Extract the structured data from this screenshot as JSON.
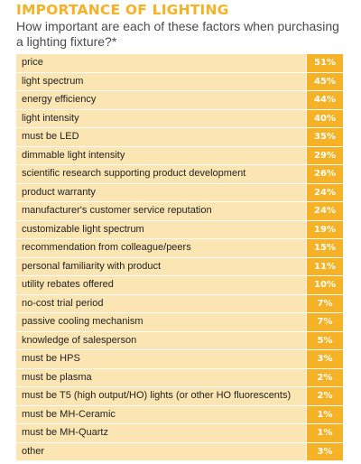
{
  "chart_data": {
    "type": "table",
    "title": "IMPORTANCE OF LIGHTING",
    "subtitle": "How important are each of these factors when purchasing a lighting fixture?*",
    "colors": {
      "title": "#f5b227",
      "label_bg": "#fbe6b3",
      "value_bg": "#f5b227",
      "value_text": "#ffffff"
    },
    "rows": [
      {
        "label": "price",
        "value": "51%"
      },
      {
        "label": "light spectrum",
        "value": "45%"
      },
      {
        "label": "energy efficiency",
        "value": "44%"
      },
      {
        "label": "light intensity",
        "value": "40%"
      },
      {
        "label": "must be LED",
        "value": "35%"
      },
      {
        "label": "dimmable light intensity",
        "value": "29%"
      },
      {
        "label": "scientific research supporting product development",
        "value": "26%"
      },
      {
        "label": "product warranty",
        "value": "24%"
      },
      {
        "label": "manufacturer's customer service reputation",
        "value": "24%"
      },
      {
        "label": "customizable light spectrum",
        "value": "19%"
      },
      {
        "label": "recommendation from colleague/peers",
        "value": "15%"
      },
      {
        "label": "personal familiarity with product",
        "value": "11%"
      },
      {
        "label": "utility rebates offered",
        "value": "10%"
      },
      {
        "label": "no-cost trial period",
        "value": "7%"
      },
      {
        "label": "passive cooling mechanism",
        "value": "7%"
      },
      {
        "label": "knowledge of salesperson",
        "value": "5%"
      },
      {
        "label": "must be HPS",
        "value": "3%"
      },
      {
        "label": "must be plasma",
        "value": "2%"
      },
      {
        "label": "must be T5 (high output/HO) lights (or other HO fluorescents)",
        "value": "2%"
      },
      {
        "label": "must be MH-Ceramic",
        "value": "1%"
      },
      {
        "label": "must be MH-Quartz",
        "value": "1%"
      },
      {
        "label": "other",
        "value": "3%"
      }
    ]
  }
}
